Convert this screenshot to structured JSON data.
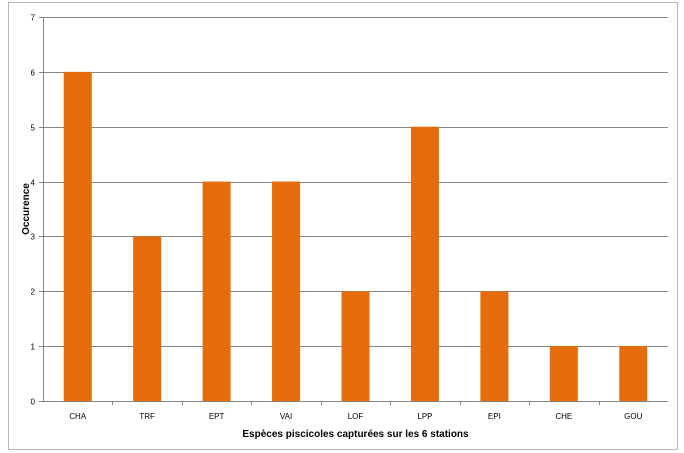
{
  "chart_data": {
    "type": "bar",
    "categories": [
      "CHA",
      "TRF",
      "EPT",
      "VAI",
      "LOF",
      "LPP",
      "EPI",
      "CHE",
      "GOU"
    ],
    "values": [
      6,
      3,
      4,
      4,
      2,
      5,
      2,
      1,
      1
    ],
    "xlabel": "Espèces piscicoles capturées sur les 6 stations",
    "ylabel": "Occurence",
    "ylim": [
      0,
      7
    ],
    "yticks": [
      "0",
      "1",
      "2",
      "3",
      "4",
      "5",
      "6",
      "7"
    ],
    "grid": true,
    "legend": "none",
    "bar_color": "#E46C0A"
  }
}
